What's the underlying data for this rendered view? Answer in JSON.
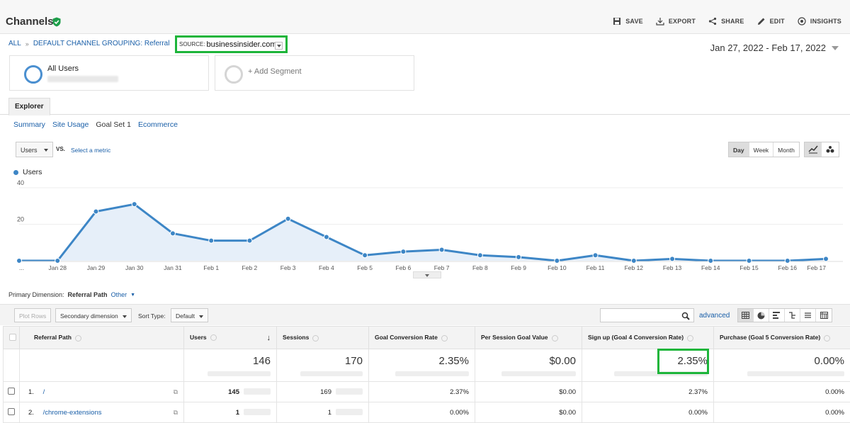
{
  "header": {
    "title": "Channels",
    "actions": [
      "SAVE",
      "EXPORT",
      "SHARE",
      "EDIT",
      "INSIGHTS"
    ]
  },
  "breadcrumb": {
    "all": "ALL",
    "grouping": "DEFAULT CHANNEL GROUPING: Referral",
    "source_key": "SOURCE:",
    "source_value": "businessinsider.com"
  },
  "date_range": "Jan 27, 2022 - Feb 17, 2022",
  "segments": {
    "active": "All Users",
    "add": "+ Add Segment"
  },
  "tabs": {
    "explorer": "Explorer"
  },
  "subnav": [
    "Summary",
    "Site Usage",
    "Goal Set 1",
    "Ecommerce"
  ],
  "metric_controls": {
    "metric": "Users",
    "vs": "VS.",
    "select_metric": "Select a metric",
    "granularity": [
      "Day",
      "Week",
      "Month"
    ]
  },
  "chart_data": {
    "type": "line",
    "series": [
      {
        "name": "Users",
        "values": [
          0,
          0,
          27,
          31,
          15,
          11,
          11,
          23,
          13,
          3,
          5,
          6,
          3,
          2,
          0,
          3,
          0,
          1,
          0,
          0,
          0,
          1
        ]
      }
    ],
    "categories": [
      "...",
      "Jan 28",
      "Jan 29",
      "Jan 30",
      "Jan 31",
      "Feb 1",
      "Feb 2",
      "Feb 3",
      "Feb 4",
      "Feb 5",
      "Feb 6",
      "Feb 7",
      "Feb 8",
      "Feb 9",
      "Feb 10",
      "Feb 11",
      "Feb 12",
      "Feb 13",
      "Feb 14",
      "Feb 15",
      "Feb 16",
      "Feb 17"
    ],
    "yticks": [
      20,
      40
    ],
    "ylim": [
      0,
      40
    ],
    "color": "#3d86c6"
  },
  "primary_dimension": {
    "label": "Primary Dimension:",
    "value": "Referral Path",
    "other": "Other"
  },
  "toolbar": {
    "plot_rows": "Plot Rows",
    "secondary": "Secondary dimension",
    "sort_type_label": "Sort Type:",
    "sort_type_value": "Default",
    "advanced": "advanced"
  },
  "table": {
    "headers": [
      "Referral Path",
      "Users",
      "Sessions",
      "Goal Conversion Rate",
      "Per Session Goal Value",
      "Sign up (Goal 4 Conversion Rate)",
      "Purchase (Goal 5 Conversion Rate)"
    ],
    "totals": [
      "146",
      "170",
      "2.35%",
      "$0.00",
      "2.35%",
      "0.00%"
    ],
    "rows": [
      {
        "index": "1.",
        "path": "/",
        "users": "145",
        "sessions": "169",
        "gcr": "2.37%",
        "psgv": "$0.00",
        "g4": "2.37%",
        "g5": "0.00%"
      },
      {
        "index": "2.",
        "path": "/chrome-extensions",
        "users": "1",
        "sessions": "1",
        "gcr": "0.00%",
        "psgv": "$0.00",
        "g4": "0.00%",
        "g5": "0.00%"
      }
    ]
  }
}
